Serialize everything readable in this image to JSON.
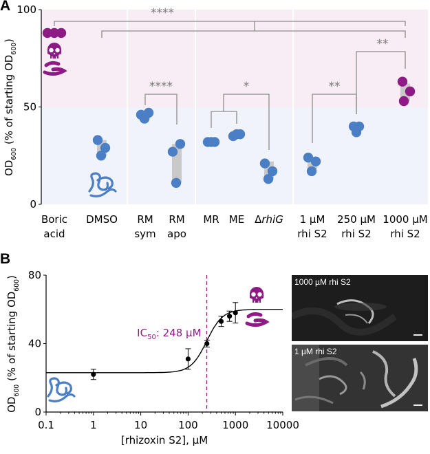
{
  "panel_a": {
    "letter": "A",
    "chart_data": {
      "type": "scatter",
      "ylabel": "OD600 (% of starting OD600)",
      "ylim": [
        0,
        100
      ],
      "yticks": [
        0,
        50,
        100
      ],
      "bands": [
        {
          "from": 50,
          "to": 100,
          "color": "#f8ecf5",
          "meaning": "dead"
        },
        {
          "from": 0,
          "to": 50,
          "color": "#f1f3fb",
          "meaning": "alive"
        }
      ],
      "groups": [
        {
          "label_lines": [
            "Boric",
            "acid"
          ],
          "values": [
            88,
            88,
            88
          ],
          "box": [
            88,
            88
          ],
          "color": "#8e1a86"
        },
        {
          "label_lines": [
            "DMSO"
          ],
          "values": [
            33,
            29,
            25
          ],
          "box": [
            25,
            33
          ],
          "color": "#4a7fc6"
        },
        {
          "label_lines": [
            "RM",
            "sym"
          ],
          "values": [
            46,
            47,
            44
          ],
          "box": [
            44,
            47
          ],
          "color": "#4a7fc6"
        },
        {
          "label_lines": [
            "RM",
            "apo"
          ],
          "values": [
            27,
            31,
            11
          ],
          "box": [
            11,
            31
          ],
          "color": "#4a7fc6"
        },
        {
          "label_lines": [
            "MR"
          ],
          "values": [
            32,
            32,
            32
          ],
          "box": [
            31,
            33
          ],
          "color": "#4a7fc6"
        },
        {
          "label_lines": [
            "ME"
          ],
          "values": [
            35,
            36,
            36
          ],
          "box": [
            34,
            37
          ],
          "color": "#4a7fc6"
        },
        {
          "label_lines": [
            "ΔrhiG"
          ],
          "values": [
            21,
            17,
            13
          ],
          "box": [
            13,
            22
          ],
          "color": "#4a7fc6"
        },
        {
          "label_lines": [
            "1 µM",
            "rhi S2"
          ],
          "values": [
            24,
            22,
            17
          ],
          "box": [
            18,
            24
          ],
          "color": "#4a7fc6"
        },
        {
          "label_lines": [
            "250 µM",
            "rhi S2"
          ],
          "values": [
            40,
            40,
            37
          ],
          "box": [
            38,
            41
          ],
          "color": "#4a7fc6"
        },
        {
          "label_lines": [
            "1000 µM",
            "rhi S2"
          ],
          "values": [
            63,
            58,
            53
          ],
          "box": [
            53,
            62
          ],
          "color": "#8e1a86"
        }
      ],
      "significance": [
        {
          "label": "****",
          "between": "Boric acid vs 1000 µM rhi S2 ↔ DMSO group"
        },
        {
          "label": "****",
          "between": "RM sym vs RM apo"
        },
        {
          "label": "*",
          "between": "MR/ME vs ΔrhiG"
        },
        {
          "label": "**",
          "between": "1 µM vs 250 µM rhi S2"
        },
        {
          "label": "**",
          "between": "250 µM vs 1000 µM rhi S2"
        }
      ]
    }
  },
  "panel_b": {
    "letter": "B",
    "chart_data": {
      "type": "scatter",
      "xscale": "log",
      "xlabel": "[rhizoxin S2], µM",
      "ylabel": "OD600 (% of starting OD600)",
      "xlim": [
        0.1,
        10000
      ],
      "ylim": [
        0,
        80
      ],
      "xticks": [
        "0.1",
        "1",
        "10",
        "100",
        "1000",
        "10000"
      ],
      "yticks": [
        0,
        40,
        80
      ],
      "points": [
        {
          "x": 1,
          "y": 22,
          "err": 3
        },
        {
          "x": 100,
          "y": 31,
          "err": 6
        },
        {
          "x": 250,
          "y": 40,
          "err": 2
        },
        {
          "x": 500,
          "y": 53,
          "err": 3
        },
        {
          "x": 750,
          "y": 56,
          "err": 3
        },
        {
          "x": 1000,
          "y": 58,
          "err": 6
        }
      ],
      "fit": {
        "bottom": 23,
        "top": 60,
        "ic50": 248,
        "hill": 2.6
      },
      "annotation": {
        "text": "IC50: 248 µM",
        "x": 248
      }
    }
  },
  "micrographs": [
    {
      "label": "1000 µM rhi S2"
    },
    {
      "label": "1 µM rhi S2"
    }
  ],
  "colors": {
    "dead": "#8e1a86",
    "alive": "#4a7fc6",
    "bracket": "#8c8c8c"
  }
}
